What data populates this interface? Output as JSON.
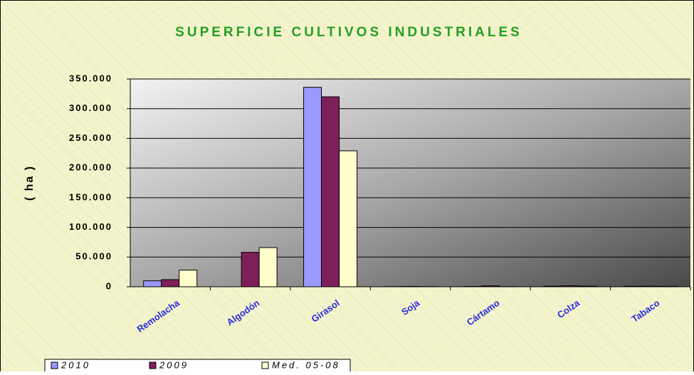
{
  "chart_data": {
    "type": "bar",
    "title": "SUPERFICIE CULTIVOS INDUSTRIALES",
    "y_label": "( ha )",
    "categories": [
      "Remolacha",
      "Algodón",
      "Girasol",
      "Soja",
      "Cártamo",
      "Colza",
      "Tabaco"
    ],
    "series": [
      {
        "name": "2010",
        "color": "#9999ff",
        "values": [
          10000,
          0,
          336000,
          300,
          500,
          1000,
          800
        ]
      },
      {
        "name": "2009",
        "color": "#7f1f5a",
        "values": [
          12000,
          58000,
          320000,
          600,
          1500,
          1500,
          900
        ]
      },
      {
        "name": "Med. 05-08",
        "color": "#ffffcc",
        "values": [
          28000,
          66000,
          229000,
          300,
          300,
          1000,
          700
        ]
      }
    ],
    "ylim": [
      0,
      350000
    ],
    "yticks": [
      {
        "value": 0,
        "label": "0"
      },
      {
        "value": 50000,
        "label": "50.000"
      },
      {
        "value": 100000,
        "label": "100.000"
      },
      {
        "value": 150000,
        "label": "150.000"
      },
      {
        "value": 200000,
        "label": "200.000"
      },
      {
        "value": 250000,
        "label": "250.000"
      },
      {
        "value": 300000,
        "label": "300.000"
      },
      {
        "value": 350000,
        "label": "350.000"
      }
    ],
    "grid": true
  }
}
